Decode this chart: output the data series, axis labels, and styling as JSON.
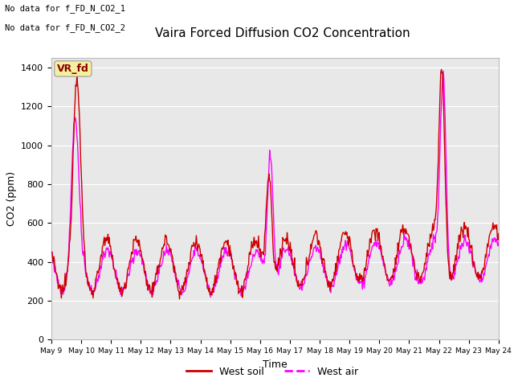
{
  "title": "Vaira Forced Diffusion CO2 Concentration",
  "xlabel": "Time",
  "ylabel": "CO2 (ppm)",
  "annotation_lines": [
    "No data for f_FD_N_CO2_1",
    "No data for f_FD_N_CO2_2"
  ],
  "legend_box_label": "VR_fd",
  "legend_box_color": "#f5f0a0",
  "legend_box_text_color": "#8b0000",
  "legend_entries": [
    "West soil",
    "West air"
  ],
  "legend_colors": [
    "#cc0000",
    "#ff00ff"
  ],
  "line_west_soil_color": "#cc0000",
  "line_west_air_color": "#ff00ff",
  "plot_bg_color": "#e8e8e8",
  "ylim": [
    0,
    1450
  ],
  "yticks": [
    0,
    200,
    400,
    600,
    800,
    1000,
    1200,
    1400
  ],
  "n_days": 15,
  "start_day": 9,
  "end_day": 24,
  "title_fontsize": 11,
  "axis_label_fontsize": 9,
  "tick_fontsize": 8
}
